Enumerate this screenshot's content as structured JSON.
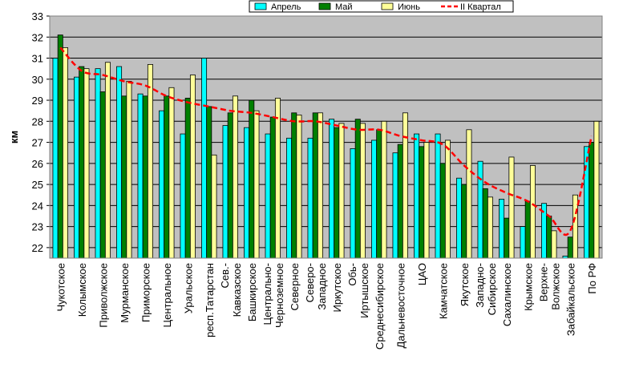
{
  "chart_data": {
    "type": "bar",
    "title": "",
    "xlabel": "",
    "ylabel": "км",
    "ylim": [
      21.5,
      33
    ],
    "yticks": [
      22,
      23,
      24,
      25,
      26,
      27,
      28,
      29,
      30,
      31,
      32,
      33
    ],
    "grid": true,
    "legend_position": "top-right",
    "categories": [
      "Чукотское",
      "Колымское",
      "Приволжское",
      "Мурманское",
      "Приморское",
      "Центральное",
      "Уральское",
      "респ.Татарстан",
      "Сев.-Кавказское",
      "Башкирское",
      "Центрально-Черноземное",
      "Северное",
      "Северо-Западное",
      "Иркутское",
      "Обь-Иртышское",
      "Среднесибирское",
      "Дальневосточное",
      "ЦАО",
      "Камчатское",
      "Якутское",
      "Западно-Сибирское",
      "Сахалинское",
      "Крымское",
      "Верхне-Волжское",
      "Забайкальское",
      "По РФ"
    ],
    "category_lines": [
      [
        "Чукотское"
      ],
      [
        "Колымское"
      ],
      [
        "Приволжское"
      ],
      [
        "Мурманское"
      ],
      [
        "Приморское"
      ],
      [
        "Центральное"
      ],
      [
        "Уральское"
      ],
      [
        "респ.Татарстан"
      ],
      [
        "Сев.-",
        "Кавказское"
      ],
      [
        "Башкирское"
      ],
      [
        "Центрально-",
        "Черноземное"
      ],
      [
        "Северное"
      ],
      [
        "Северо-",
        "Западное"
      ],
      [
        "Иркутское"
      ],
      [
        "Обь-",
        "Иртышское"
      ],
      [
        "Среднесибирское"
      ],
      [
        "Дальневосточное"
      ],
      [
        "ЦАО"
      ],
      [
        "Камчатское"
      ],
      [
        "Якутское"
      ],
      [
        "Западно-",
        "Сибирское"
      ],
      [
        "Сахалинское"
      ],
      [
        "Крымское"
      ],
      [
        "Верхне-",
        "Волжское"
      ],
      [
        "Забайкальское"
      ],
      [
        "По РФ"
      ]
    ],
    "series": [
      {
        "name": "Апрель",
        "type": "bar",
        "color": "#00ffff",
        "values": [
          31.0,
          30.1,
          30.5,
          30.6,
          29.3,
          28.5,
          27.4,
          31.0,
          27.8,
          27.7,
          27.4,
          27.2,
          27.2,
          28.1,
          26.7,
          27.1,
          26.5,
          27.4,
          27.4,
          25.3,
          26.1,
          24.3,
          23.0,
          24.1,
          21.6,
          26.8
        ]
      },
      {
        "name": "Май",
        "type": "bar",
        "color": "#008000",
        "values": [
          32.1,
          30.6,
          29.4,
          29.2,
          29.2,
          29.2,
          29.1,
          28.7,
          28.4,
          29.0,
          28.2,
          28.4,
          28.4,
          27.7,
          28.1,
          27.6,
          26.9,
          26.8,
          26.0,
          25.0,
          24.8,
          23.4,
          24.2,
          23.5,
          22.5,
          27.0
        ]
      },
      {
        "name": "Июнь",
        "type": "bar",
        "color": "#ffff99",
        "values": [
          31.5,
          30.5,
          30.8,
          29.9,
          30.7,
          29.6,
          30.2,
          26.4,
          29.2,
          28.5,
          29.1,
          28.3,
          28.4,
          27.9,
          27.9,
          28.0,
          28.4,
          27.0,
          27.1,
          27.6,
          24.4,
          26.3,
          25.9,
          22.8,
          24.5,
          28.0
        ]
      },
      {
        "name": "II Квартал",
        "type": "line",
        "color": "#ff0000",
        "values": [
          31.5,
          30.4,
          30.2,
          29.9,
          29.7,
          29.2,
          28.9,
          28.7,
          28.5,
          28.4,
          28.2,
          28.0,
          28.0,
          27.8,
          27.6,
          27.6,
          27.3,
          27.1,
          26.9,
          25.9,
          25.1,
          24.6,
          24.2,
          23.5,
          22.8,
          27.3
        ]
      }
    ]
  }
}
